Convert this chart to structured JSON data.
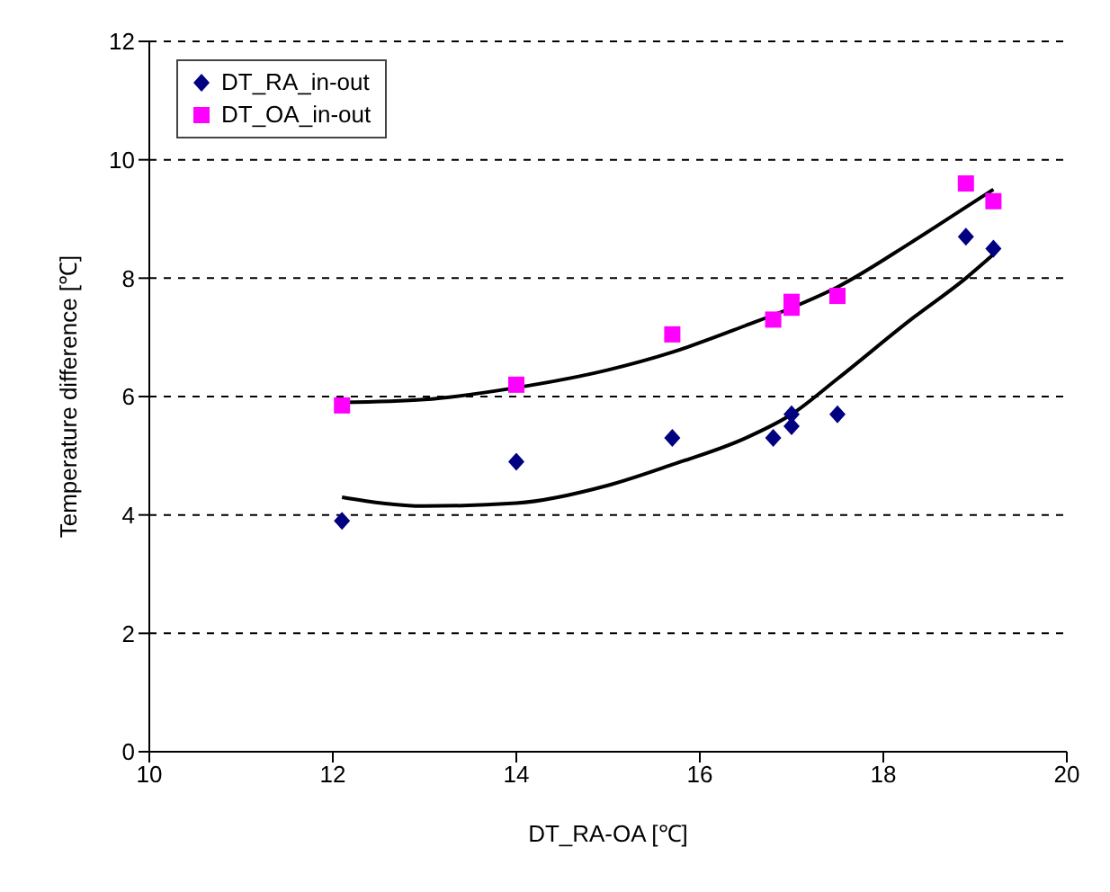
{
  "chart_data": {
    "type": "scatter",
    "xlabel": "DT_RA-OA [℃]",
    "ylabel": "Temperature difference [℃]",
    "xlim": [
      10,
      20
    ],
    "xticks": [
      10,
      12,
      14,
      16,
      18,
      20
    ],
    "ylim": [
      0,
      12
    ],
    "yticks": [
      0,
      2,
      4,
      6,
      8,
      10,
      12
    ],
    "grid": "y",
    "legend": "top left",
    "series": [
      {
        "name": "DT_RA_in-out",
        "color": "#000080",
        "marker": "diamond",
        "x": [
          12.1,
          14.0,
          15.7,
          16.8,
          17.0,
          17.0,
          17.5,
          18.9,
          19.2
        ],
        "values": [
          3.9,
          4.9,
          5.3,
          5.3,
          5.7,
          5.5,
          5.7,
          8.7,
          8.5
        ]
      },
      {
        "name": "DT_OA_in-out",
        "color": "#ff00ff",
        "marker": "square",
        "x": [
          12.1,
          14.0,
          15.7,
          16.8,
          17.0,
          17.0,
          17.5,
          18.9,
          19.2
        ],
        "values": [
          5.85,
          6.2,
          7.05,
          7.3,
          7.6,
          7.5,
          7.7,
          9.6,
          9.3
        ]
      },
      {
        "type": "line",
        "color": "#000000",
        "marker": "none",
        "x": [
          12.1,
          13.0,
          14.0,
          15.0,
          15.7,
          16.5,
          17.0,
          17.5,
          18.3,
          18.9,
          19.2
        ],
        "values": [
          4.3,
          4.15,
          4.2,
          4.5,
          4.85,
          5.3,
          5.7,
          6.3,
          7.3,
          8.0,
          8.4
        ]
      },
      {
        "type": "line",
        "color": "#000000",
        "marker": "none",
        "x": [
          12.1,
          13.0,
          14.0,
          15.0,
          15.7,
          16.5,
          17.0,
          17.5,
          18.3,
          18.9,
          19.2
        ],
        "values": [
          5.9,
          5.95,
          6.15,
          6.45,
          6.75,
          7.2,
          7.5,
          7.85,
          8.6,
          9.2,
          9.5
        ]
      }
    ]
  }
}
